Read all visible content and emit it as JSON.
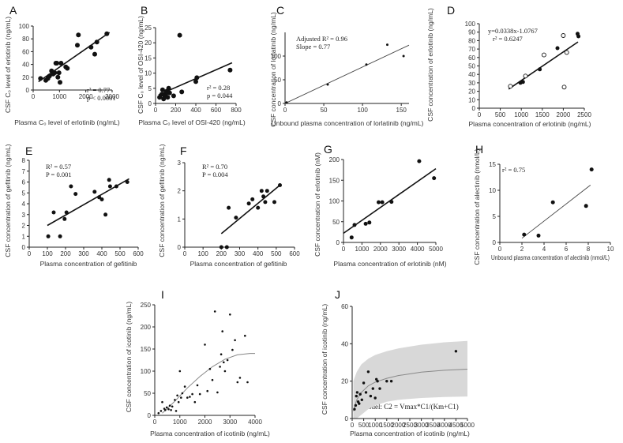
{
  "chart_data": [
    {
      "id": "A",
      "type": "scatter",
      "letter": "A",
      "xlabel": "Plasma C₀ level of erlotinib (ng/mL)",
      "ylabel": "CSF C₀ level of erlotinib (ng/mL)",
      "xlim": [
        0,
        3000
      ],
      "ylim": [
        0,
        100
      ],
      "xticks": [
        0,
        1000,
        2000,
        3000
      ],
      "yticks": [
        0,
        20,
        40,
        60,
        80,
        100
      ],
      "annotations": [
        "r² = 0.77",
        "p < 0.0001"
      ],
      "points": [
        [
          280,
          18
        ],
        [
          480,
          15
        ],
        [
          560,
          18
        ],
        [
          620,
          22
        ],
        [
          700,
          30
        ],
        [
          760,
          25
        ],
        [
          820,
          27
        ],
        [
          860,
          42
        ],
        [
          900,
          42
        ],
        [
          940,
          20
        ],
        [
          980,
          27
        ],
        [
          1020,
          12
        ],
        [
          1060,
          42
        ],
        [
          1240,
          36
        ],
        [
          1300,
          34
        ],
        [
          1680,
          70
        ],
        [
          1720,
          86
        ],
        [
          2200,
          67
        ],
        [
          2340,
          56
        ],
        [
          2420,
          75
        ],
        [
          2800,
          88
        ]
      ],
      "open_points": [],
      "fit": [
        [
          200,
          13
        ],
        [
          2900,
          90
        ]
      ]
    },
    {
      "id": "B",
      "type": "scatter",
      "letter": "B",
      "xlabel": "Plasma C₀ level of OSI-420 (ng/mL)",
      "ylabel": "CSF C₀ level of OSI-420 (ng/mL)",
      "xlim": [
        0,
        800
      ],
      "ylim": [
        0,
        25
      ],
      "xticks": [
        0,
        200,
        400,
        600,
        800
      ],
      "yticks": [
        0,
        5,
        10,
        15,
        20,
        25
      ],
      "annotations": [
        "r² = 0.28",
        "p = 0.044"
      ],
      "points": [
        [
          40,
          2
        ],
        [
          60,
          3
        ],
        [
          70,
          4.5
        ],
        [
          80,
          1.5
        ],
        [
          90,
          2.5
        ],
        [
          100,
          3
        ],
        [
          110,
          4
        ],
        [
          120,
          2
        ],
        [
          130,
          5
        ],
        [
          140,
          3.5
        ],
        [
          180,
          2.5
        ],
        [
          240,
          22.5
        ],
        [
          260,
          3.8
        ],
        [
          400,
          7.2
        ],
        [
          410,
          8.5
        ],
        [
          740,
          11
        ]
      ],
      "open_points": [],
      "fit": [
        [
          30,
          2.8
        ],
        [
          760,
          13.4
        ]
      ]
    },
    {
      "id": "C",
      "type": "scatter",
      "letter": "C",
      "xlabel": "Unbound plasma concentration of lorlatinib (ng/mL)",
      "ylabel": "CSF concentration of lorlatinib (ng/mL)",
      "xlim": [
        0,
        160
      ],
      "ylim": [
        0,
        150
      ],
      "xticks": [
        0,
        50,
        100,
        150
      ],
      "yticks": [
        0,
        50,
        100
      ],
      "annotations": [
        "Adjusted R² = 0.96",
        "Slope = 0.77"
      ],
      "points": [
        [
          2,
          2
        ],
        [
          55,
          40
        ],
        [
          105,
          82
        ],
        [
          132,
          124
        ],
        [
          153,
          100
        ]
      ],
      "open_points": [],
      "fit": [
        [
          0,
          0
        ],
        [
          160,
          123
        ]
      ]
    },
    {
      "id": "D",
      "type": "scatter",
      "letter": "D",
      "xlabel": "Plasma concentration of erlotinib (ng/mL)",
      "ylabel": "CSF concentration of erlotinib (ng/mL)",
      "xlim": [
        0,
        2500
      ],
      "ylim": [
        0,
        100
      ],
      "xticks": [
        0,
        500,
        1000,
        1500,
        2000,
        2500
      ],
      "yticks": [
        0,
        10,
        20,
        30,
        40,
        50,
        60,
        70,
        80,
        90,
        100
      ],
      "annotations": [
        "y=0.0338x-1.0767",
        "r² = 0.6247"
      ],
      "points": [
        [
          980,
          30
        ],
        [
          1040,
          31
        ],
        [
          1440,
          46
        ],
        [
          1860,
          71
        ],
        [
          2340,
          88
        ],
        [
          2360,
          85
        ]
      ],
      "open_points": [
        [
          740,
          26
        ],
        [
          1100,
          38
        ],
        [
          1540,
          63
        ],
        [
          2000,
          86
        ],
        [
          2020,
          25
        ],
        [
          2080,
          66
        ]
      ],
      "fit": [
        [
          700,
          22.6
        ],
        [
          2350,
          78.4
        ]
      ]
    },
    {
      "id": "E",
      "type": "scatter",
      "letter": "E",
      "xlabel": "Plasma concentration of gefitinib",
      "ylabel": "CSF concentration of gefitinib (ng/mL)",
      "xlim": [
        0,
        600
      ],
      "ylim": [
        0,
        8
      ],
      "xticks": [
        0,
        100,
        200,
        300,
        400,
        500,
        600
      ],
      "yticks": [
        0,
        1,
        2,
        3,
        4,
        5,
        6,
        7,
        8
      ],
      "annotations": [
        "R² = 0.57",
        "P = 0.001"
      ],
      "points": [
        [
          105,
          1
        ],
        [
          135,
          3.2
        ],
        [
          170,
          1
        ],
        [
          195,
          2.6
        ],
        [
          205,
          3.2
        ],
        [
          230,
          5.6
        ],
        [
          255,
          4.9
        ],
        [
          360,
          5.1
        ],
        [
          385,
          4.6
        ],
        [
          400,
          4.4
        ],
        [
          420,
          3
        ],
        [
          440,
          6.2
        ],
        [
          445,
          5.6
        ],
        [
          480,
          5.6
        ],
        [
          540,
          6
        ]
      ],
      "open_points": [],
      "fit": [
        [
          100,
          2
        ],
        [
          550,
          6.3
        ]
      ]
    },
    {
      "id": "F",
      "type": "scatter",
      "letter": "F",
      "xlabel": "Plasma concentration of gefitinib",
      "ylabel": "CSF concentration of gefitinib (ng/mL)",
      "xlim": [
        0,
        600
      ],
      "ylim": [
        0,
        3
      ],
      "xticks": [
        0,
        100,
        200,
        300,
        400,
        500,
        600
      ],
      "yticks": [
        0,
        1,
        2,
        3
      ],
      "annotations": [
        "R² = 0.70",
        "P = 0.004"
      ],
      "points": [
        [
          200,
          0
        ],
        [
          230,
          0
        ],
        [
          240,
          1.4
        ],
        [
          280,
          1.05
        ],
        [
          350,
          1.55
        ],
        [
          370,
          1.7
        ],
        [
          400,
          1.4
        ],
        [
          420,
          2
        ],
        [
          430,
          1.8
        ],
        [
          440,
          1.6
        ],
        [
          450,
          2
        ],
        [
          490,
          1.6
        ],
        [
          520,
          2.2
        ]
      ],
      "open_points": [],
      "fit": [
        [
          200,
          0.48
        ],
        [
          520,
          2.2
        ]
      ]
    },
    {
      "id": "G",
      "type": "scatter",
      "letter": "G",
      "xlabel": "Plasma concentration of erlotinib (nM)",
      "ylabel": "CSF concentration of erlotinib (nM)",
      "xlim": [
        0,
        5000
      ],
      "ylim": [
        0,
        200
      ],
      "xticks": [
        0,
        1000,
        2000,
        3000,
        4000,
        5000
      ],
      "yticks": [
        0,
        50,
        100,
        150,
        200
      ],
      "annotations": [],
      "points": [
        [
          440,
          12
        ],
        [
          600,
          42
        ],
        [
          1200,
          45
        ],
        [
          1400,
          48
        ],
        [
          1900,
          97
        ],
        [
          2100,
          97
        ],
        [
          2600,
          98
        ],
        [
          4100,
          196
        ],
        [
          4900,
          155
        ]
      ],
      "open_points": [],
      "fit": [
        [
          0,
          22
        ],
        [
          5000,
          178
        ]
      ]
    },
    {
      "id": "H",
      "type": "scatter",
      "letter": "H",
      "xlabel": "Unbound plasma concentration of alectinib (nmol/L)",
      "ylabel": "CSF concentration of alectinib (nmol/L)",
      "xlim": [
        0,
        10
      ],
      "ylim": [
        0,
        15
      ],
      "xticks": [
        0,
        2,
        4,
        6,
        8,
        10
      ],
      "yticks": [
        0,
        5,
        10,
        15
      ],
      "annotations": [
        "r² = 0.75"
      ],
      "points": [
        [
          2.2,
          1.5
        ],
        [
          3.5,
          1.3
        ],
        [
          4.8,
          7.7
        ],
        [
          7.8,
          7
        ],
        [
          8.3,
          14
        ]
      ],
      "open_points": [],
      "fit": [
        [
          2,
          0.8
        ],
        [
          8.2,
          11
        ]
      ]
    },
    {
      "id": "I",
      "type": "scatter",
      "letter": "I",
      "xlabel": "Plasma concentration of icotinib (ng/mL)",
      "ylabel": "CSF concentration of icotinib (ng/mL)",
      "xlim": [
        0,
        4000
      ],
      "ylim": [
        0,
        250
      ],
      "xticks": [
        0,
        1000,
        2000,
        3000,
        4000
      ],
      "yticks": [
        0,
        50,
        100,
        150,
        200,
        250
      ],
      "annotations": [],
      "points": [
        [
          150,
          5
        ],
        [
          250,
          10
        ],
        [
          300,
          30
        ],
        [
          380,
          15
        ],
        [
          420,
          12
        ],
        [
          480,
          18
        ],
        [
          550,
          14
        ],
        [
          600,
          22
        ],
        [
          650,
          12
        ],
        [
          700,
          20
        ],
        [
          800,
          35
        ],
        [
          850,
          10
        ],
        [
          900,
          45
        ],
        [
          950,
          30
        ],
        [
          1000,
          100
        ],
        [
          1050,
          40
        ],
        [
          1100,
          50
        ],
        [
          1200,
          65
        ],
        [
          1300,
          40
        ],
        [
          1400,
          42
        ],
        [
          1500,
          48
        ],
        [
          1600,
          30
        ],
        [
          1700,
          68
        ],
        [
          1800,
          48
        ],
        [
          2000,
          160
        ],
        [
          2100,
          55
        ],
        [
          2200,
          105
        ],
        [
          2300,
          80
        ],
        [
          2400,
          235
        ],
        [
          2500,
          52
        ],
        [
          2600,
          110
        ],
        [
          2650,
          138
        ],
        [
          2700,
          190
        ],
        [
          2750,
          120
        ],
        [
          2800,
          100
        ],
        [
          2900,
          125
        ],
        [
          3000,
          228
        ],
        [
          3100,
          148
        ],
        [
          3200,
          170
        ],
        [
          3300,
          75
        ],
        [
          3400,
          85
        ],
        [
          3600,
          180
        ],
        [
          3700,
          75
        ]
      ],
      "open_points": [],
      "curve": [
        [
          300,
          5
        ],
        [
          800,
          32
        ],
        [
          1300,
          62
        ],
        [
          1800,
          88
        ],
        [
          2300,
          110
        ],
        [
          2800,
          127
        ],
        [
          3300,
          137
        ],
        [
          3800,
          140
        ],
        [
          4000,
          140
        ]
      ]
    },
    {
      "id": "J",
      "type": "scatter",
      "letter": "J",
      "xlabel": "Plasma concentration of icotinib (ng/mL)",
      "ylabel": "CSF concentration of icotinib (ng/mL)",
      "xlim": [
        0,
        5000
      ],
      "ylim": [
        0,
        60
      ],
      "xticks": [
        0,
        500,
        1000,
        1500,
        2000,
        2500,
        3000,
        3500,
        4000,
        4500,
        5000
      ],
      "yticks": [
        0,
        20,
        40,
        60
      ],
      "annotations": [],
      "model_text": "Model: C2 = Vmax*C1/(Km+C1)",
      "points": [
        [
          100,
          5
        ],
        [
          150,
          7
        ],
        [
          180,
          12
        ],
        [
          220,
          14
        ],
        [
          260,
          9
        ],
        [
          300,
          8
        ],
        [
          350,
          13
        ],
        [
          420,
          10
        ],
        [
          500,
          19
        ],
        [
          600,
          14
        ],
        [
          700,
          25
        ],
        [
          800,
          12
        ],
        [
          900,
          16
        ],
        [
          1000,
          11
        ],
        [
          1050,
          21
        ],
        [
          1100,
          20
        ],
        [
          1200,
          16
        ],
        [
          1500,
          20
        ],
        [
          1700,
          20
        ],
        [
          4500,
          36
        ]
      ],
      "open_points": [],
      "curve": [
        [
          50,
          4
        ],
        [
          200,
          10
        ],
        [
          400,
          14
        ],
        [
          700,
          17.5
        ],
        [
          1000,
          19.5
        ],
        [
          1500,
          21.5
        ],
        [
          2000,
          23
        ],
        [
          3000,
          24.8
        ],
        [
          4000,
          25.8
        ],
        [
          5000,
          26.4
        ]
      ],
      "band_upper": [
        [
          50,
          20
        ],
        [
          200,
          25
        ],
        [
          400,
          29
        ],
        [
          700,
          32
        ],
        [
          1000,
          34
        ],
        [
          1500,
          36
        ],
        [
          2000,
          37.5
        ],
        [
          3000,
          39.5
        ],
        [
          4000,
          40.8
        ],
        [
          5000,
          41.5
        ]
      ],
      "band_lower": [
        [
          50,
          0
        ],
        [
          200,
          0
        ],
        [
          400,
          2
        ],
        [
          700,
          5
        ],
        [
          1000,
          7
        ],
        [
          1500,
          9
        ],
        [
          2000,
          10
        ],
        [
          3000,
          11
        ],
        [
          4000,
          11.5
        ],
        [
          5000,
          11.8
        ]
      ]
    }
  ]
}
